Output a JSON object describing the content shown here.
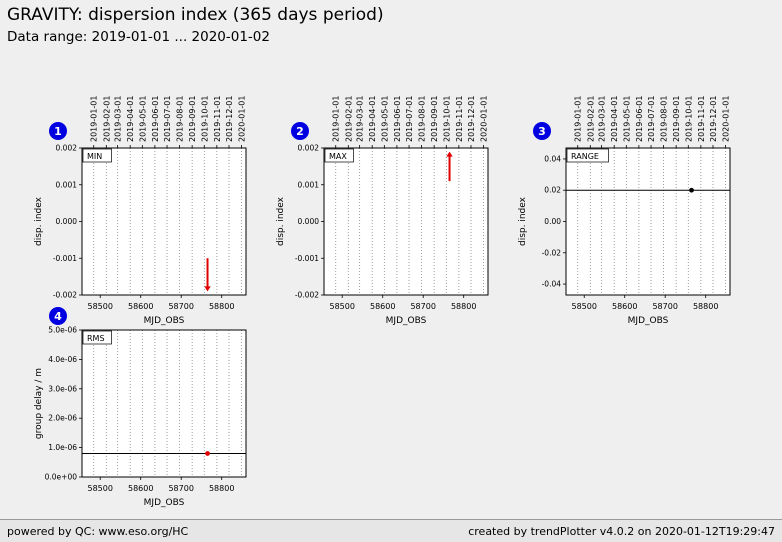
{
  "header": {
    "title": "GRAVITY: dispersion index (365 days period)",
    "subtitle": "Data range: 2019-01-01 ... 2020-01-02"
  },
  "footer": {
    "left": "powered by QC: www.eso.org/HC",
    "right": "created by trendPlotter v4.0.2 on 2020-01-12T19:29:47"
  },
  "colors": {
    "page_bg": "#efefef",
    "plot_bg": "#ffffff",
    "badge": "#0000e0",
    "marker_red": "#e00000",
    "marker_black": "#000000",
    "grid": "#888888"
  },
  "date_axis": {
    "labels": [
      "2019-01-01",
      "2019-02-01",
      "2019-03-01",
      "2019-04-01",
      "2019-05-01",
      "2019-06-01",
      "2019-07-01",
      "2019-08-01",
      "2019-09-01",
      "2019-10-01",
      "2019-11-01",
      "2019-12-01",
      "2020-01-01"
    ],
    "mjd": [
      58484,
      58515,
      58543,
      58574,
      58604,
      58635,
      58665,
      58696,
      58727,
      58757,
      58788,
      58818,
      58849
    ]
  },
  "chart_data": [
    {
      "badge": "1",
      "label": "MIN",
      "type": "scatter",
      "xlabel": "MJD_OBS",
      "ylabel": "disp. index",
      "xlim": [
        58455,
        58860
      ],
      "ylim": [
        -0.002,
        0.002
      ],
      "xticks": [
        58500,
        58600,
        58700,
        58800
      ],
      "yticks": [
        -0.002,
        -0.001,
        0,
        0.001,
        0.002
      ],
      "ytick_labels": [
        "-0.002",
        "-0.001",
        "0.000",
        "0.001",
        "0.002"
      ],
      "show_top_dates": true,
      "points": [],
      "hline": null,
      "arrows": [
        {
          "x": 58765,
          "tail": -0.001,
          "tip": -0.0019,
          "direction": "down",
          "color": "#e00000"
        }
      ]
    },
    {
      "badge": "2",
      "label": "MAX",
      "type": "scatter",
      "xlabel": "MJD_OBS",
      "ylabel": "disp. index",
      "xlim": [
        58455,
        58860
      ],
      "ylim": [
        -0.002,
        0.002
      ],
      "xticks": [
        58500,
        58600,
        58700,
        58800
      ],
      "yticks": [
        -0.002,
        -0.001,
        0,
        0.001,
        0.002
      ],
      "ytick_labels": [
        "-0.002",
        "-0.001",
        "0.000",
        "0.001",
        "0.002"
      ],
      "show_top_dates": true,
      "points": [],
      "hline": null,
      "arrows": [
        {
          "x": 58765,
          "tail": 0.0011,
          "tip": 0.0019,
          "direction": "up",
          "color": "#e00000"
        }
      ]
    },
    {
      "badge": "3",
      "label": "RANGE",
      "type": "scatter",
      "xlabel": "MJD_OBS",
      "ylabel": "disp. index",
      "xlim": [
        58455,
        58860
      ],
      "ylim": [
        -0.047,
        0.047
      ],
      "xticks": [
        58500,
        58600,
        58700,
        58800
      ],
      "yticks": [
        -0.04,
        -0.02,
        0,
        0.02,
        0.04
      ],
      "ytick_labels": [
        "-0.04",
        "-0.02",
        "0.00",
        "0.02",
        "0.04"
      ],
      "show_top_dates": true,
      "points": [
        {
          "x": 58765,
          "y": 0.02,
          "color": "#000000"
        }
      ],
      "hline": 0.02,
      "arrows": []
    },
    {
      "badge": "4",
      "label": "RMS",
      "type": "scatter",
      "xlabel": "MJD_OBS",
      "ylabel": "group delay / m",
      "xlim": [
        58455,
        58860
      ],
      "ylim": [
        0,
        5e-06
      ],
      "xticks": [
        58500,
        58600,
        58700,
        58800
      ],
      "yticks": [
        0,
        1e-06,
        2e-06,
        3e-06,
        4e-06,
        5e-06
      ],
      "ytick_labels": [
        "0.0e+00",
        "1.0e-06",
        "2.0e-06",
        "3.0e-06",
        "4.0e-06",
        "5.0e-06"
      ],
      "show_top_dates": false,
      "points": [
        {
          "x": 58765,
          "y": 8e-07,
          "color": "#e00000"
        }
      ],
      "hline": 8e-07,
      "arrows": []
    }
  ]
}
